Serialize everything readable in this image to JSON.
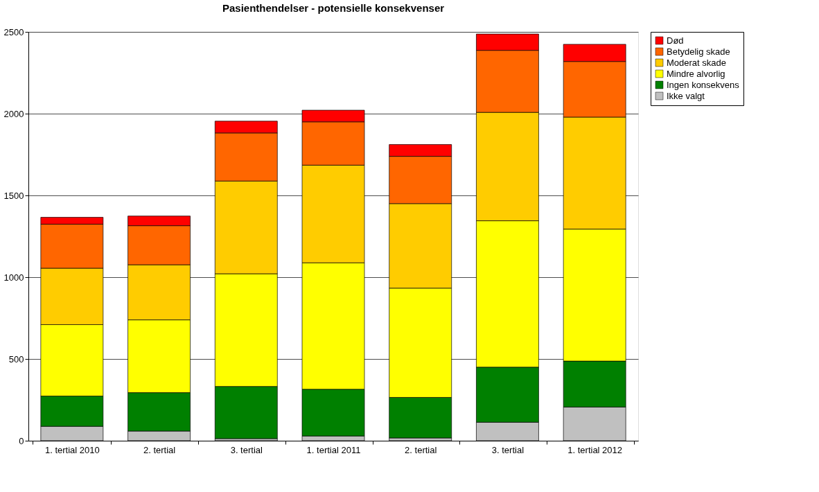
{
  "chart_data": {
    "type": "bar",
    "stacked": true,
    "title": "Pasienthendelser - potensielle konsekvenser",
    "categories": [
      "1. tertial 2010",
      "2. tertial",
      "3. tertial",
      "1. tertial 2011",
      "2. tertial",
      "3. tertial",
      "1. tertial 2012"
    ],
    "series": [
      {
        "name": "Ikke valgt",
        "color": "#c0c0c0",
        "values": [
          88,
          59,
          13,
          29,
          17,
          113,
          206
        ]
      },
      {
        "name": "Ingen konsekvens",
        "color": "#008000",
        "values": [
          185,
          235,
          319,
          286,
          248,
          337,
          281
        ]
      },
      {
        "name": "Mindre alvorlig",
        "color": "#ffff00",
        "values": [
          437,
          445,
          689,
          773,
          668,
          895,
          807
        ]
      },
      {
        "name": "Moderat skade",
        "color": "#ffcc00",
        "values": [
          345,
          337,
          567,
          597,
          517,
          663,
          685
        ]
      },
      {
        "name": "Betydelig skade",
        "color": "#ff6600",
        "values": [
          269,
          239,
          294,
          265,
          289,
          379,
          340
        ]
      },
      {
        "name": "Død",
        "color": "#ff0000",
        "values": [
          42,
          59,
          72,
          71,
          72,
          100,
          105
        ]
      }
    ],
    "ylim": [
      0,
      2500
    ],
    "yticks": [
      0,
      500,
      1000,
      1500,
      2000,
      2500
    ],
    "grid": "y",
    "legend": "right"
  }
}
